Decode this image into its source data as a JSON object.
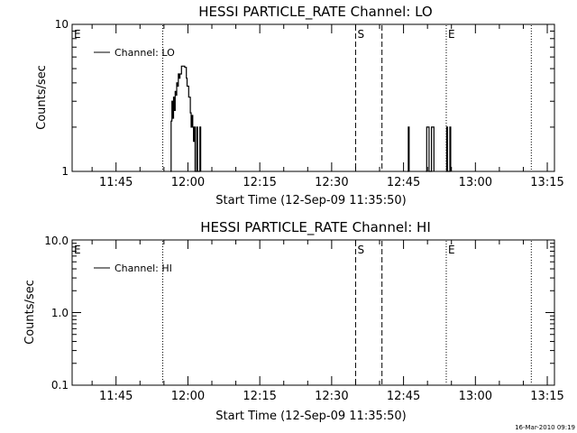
{
  "chart_data": [
    {
      "type": "line",
      "title": "HESSI PARTICLE_RATE Channel: LO",
      "xlabel": "Start Time (12-Sep-09 11:35:50)",
      "ylabel": "Counts/sec",
      "yscale": "log",
      "ylim": [
        1,
        10
      ],
      "xlim": [
        "11:35:50",
        "13:16:30"
      ],
      "x_ticks": [
        "11:45",
        "12:00",
        "12:15",
        "12:30",
        "12:45",
        "13:00",
        "13:15"
      ],
      "y_ticks": [
        "1",
        "10"
      ],
      "legend": "Channel: LO",
      "legend_position": "top-left",
      "markers": [
        {
          "label": "E",
          "time": "11:35:50",
          "style": "dotted"
        },
        {
          "label": "",
          "time": "11:54:45",
          "style": "dotted"
        },
        {
          "label": "S",
          "time": "12:35:00",
          "style": "dashed"
        },
        {
          "label": "",
          "time": "12:40:30",
          "style": "dashed"
        },
        {
          "label": "E",
          "time": "12:53:55",
          "style": "dotted"
        },
        {
          "label": "",
          "time": "13:11:40",
          "style": "dotted"
        }
      ],
      "series": [
        {
          "name": "Channel: LO",
          "segments": [
            [
              [
                "11:56:20",
                1
              ],
              [
                "11:56:30",
                2.2
              ],
              [
                "11:56:40",
                3.0
              ],
              [
                "11:56:50",
                2.3
              ],
              [
                "11:57:00",
                3.2
              ],
              [
                "11:57:10",
                2.6
              ],
              [
                "11:57:20",
                3.5
              ],
              [
                "11:57:30",
                3.3
              ],
              [
                "11:57:40",
                4.0
              ],
              [
                "11:57:50",
                3.8
              ],
              [
                "11:58:00",
                4.6
              ],
              [
                "11:58:10",
                4.3
              ],
              [
                "11:58:20",
                4.6
              ],
              [
                "11:58:40",
                5.2
              ],
              [
                "11:59:00",
                5.2
              ],
              [
                "11:59:20",
                5.1
              ],
              [
                "11:59:40",
                4.3
              ],
              [
                "11:59:50",
                3.8
              ],
              [
                "12:00:00",
                3.8
              ],
              [
                "12:00:10",
                3.2
              ],
              [
                "12:00:20",
                3.2
              ],
              [
                "12:00:30",
                2.5
              ],
              [
                "12:00:40",
                2.0
              ],
              [
                "12:00:50",
                2.4
              ],
              [
                "12:01:00",
                2.0
              ],
              [
                "12:01:10",
                1.6
              ],
              [
                "12:01:20",
                2.0
              ],
              [
                "12:01:30",
                1
              ],
              [
                "12:01:40",
                1
              ],
              [
                "12:01:50",
                2.0
              ],
              [
                "12:02:00",
                1
              ],
              [
                "12:02:20",
                1
              ],
              [
                "12:02:30",
                2.0
              ],
              [
                "12:02:40",
                1
              ]
            ],
            [
              [
                "12:45:50",
                1
              ],
              [
                "12:46:00",
                2.0
              ],
              [
                "12:46:10",
                1
              ]
            ],
            [
              [
                "12:49:40",
                1
              ],
              [
                "12:49:50",
                2.0
              ],
              [
                "12:50:10",
                2.0
              ],
              [
                "12:50:20",
                1
              ],
              [
                "12:50:40",
                1
              ],
              [
                "12:50:50",
                2.0
              ],
              [
                "12:51:10",
                2.0
              ],
              [
                "12:51:20",
                1
              ]
            ],
            [
              [
                "12:53:50",
                1
              ],
              [
                "12:54:00",
                2.0
              ],
              [
                "12:54:10",
                1
              ],
              [
                "12:54:30",
                1
              ],
              [
                "12:54:40",
                2.0
              ],
              [
                "12:54:50",
                1
              ]
            ]
          ]
        }
      ]
    },
    {
      "type": "line",
      "title": "HESSI PARTICLE_RATE Channel: HI",
      "xlabel": "Start Time (12-Sep-09 11:35:50)",
      "ylabel": "Counts/sec",
      "yscale": "log",
      "ylim": [
        0.1,
        10
      ],
      "xlim": [
        "11:35:50",
        "13:16:30"
      ],
      "x_ticks": [
        "11:45",
        "12:00",
        "12:15",
        "12:30",
        "12:45",
        "13:00",
        "13:15"
      ],
      "y_ticks": [
        "0.1",
        "1.0",
        "10.0"
      ],
      "legend": "Channel: HI",
      "legend_position": "top-left",
      "markers": [
        {
          "label": "E",
          "time": "11:35:50",
          "style": "dotted"
        },
        {
          "label": "",
          "time": "11:54:45",
          "style": "dotted"
        },
        {
          "label": "S",
          "time": "12:35:00",
          "style": "dashed"
        },
        {
          "label": "",
          "time": "12:40:30",
          "style": "dashed"
        },
        {
          "label": "E",
          "time": "12:53:55",
          "style": "dotted"
        },
        {
          "label": "",
          "time": "13:11:40",
          "style": "dotted"
        }
      ],
      "series": [
        {
          "name": "Channel: HI",
          "segments": []
        }
      ]
    }
  ],
  "footer": {
    "timestamp": "16-Mar-2010 09:19"
  }
}
